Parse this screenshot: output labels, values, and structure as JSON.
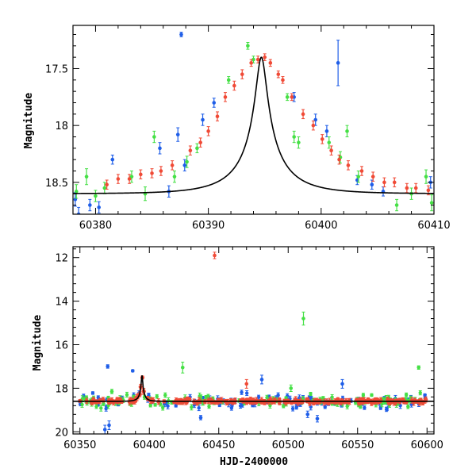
{
  "colors": {
    "blue": "#1f5ee8",
    "green": "#45e045",
    "red": "#f04a36",
    "model": "#000000"
  },
  "chart_data": [
    {
      "type": "scatter",
      "panel": "top",
      "xlabel": "",
      "ylabel": "Magnitude",
      "xlim": [
        60378,
        60410
      ],
      "ylim": [
        18.78,
        17.12
      ],
      "y_inverted": true,
      "xticks": [
        60380,
        60390,
        60400,
        60410
      ],
      "yticks": [
        17.5,
        18,
        18.5
      ],
      "model_curve": {
        "t0": 60394.7,
        "peak_mag": 17.4,
        "base_mag": 18.6,
        "tE": 4.5
      },
      "series": [
        {
          "color": "blue",
          "points": [
            [
              60378.2,
              18.65,
              0.06
            ],
            [
              60378.5,
              18.78,
              0.06
            ],
            [
              60379.5,
              18.7,
              0.05
            ],
            [
              60380.3,
              18.72,
              0.05
            ],
            [
              60381.5,
              18.3,
              0.04
            ],
            [
              60385.7,
              18.2,
              0.05
            ],
            [
              60386.5,
              18.58,
              0.05
            ],
            [
              60387.3,
              18.08,
              0.06
            ],
            [
              60387.6,
              17.2,
              0.02
            ],
            [
              60387.9,
              18.35,
              0.05
            ],
            [
              60389.5,
              17.95,
              0.05
            ],
            [
              60390.5,
              17.8,
              0.04
            ],
            [
              60397.6,
              17.75,
              0.04
            ],
            [
              60399.5,
              17.95,
              0.05
            ],
            [
              60400.5,
              18.05,
              0.05
            ],
            [
              60401.5,
              17.45,
              0.2
            ],
            [
              60403.2,
              18.48,
              0.04
            ],
            [
              60404.5,
              18.52,
              0.04
            ],
            [
              60405.5,
              18.58,
              0.04
            ],
            [
              60409.7,
              18.5,
              0.05
            ]
          ]
        },
        {
          "color": "green",
          "points": [
            [
              60378.3,
              18.58,
              0.06
            ],
            [
              60379.2,
              18.45,
              0.07
            ],
            [
              60380.0,
              18.62,
              0.05
            ],
            [
              60380.8,
              18.55,
              0.05
            ],
            [
              60383.2,
              18.45,
              0.05
            ],
            [
              60384.4,
              18.6,
              0.06
            ],
            [
              60385.2,
              18.1,
              0.05
            ],
            [
              60387.0,
              18.45,
              0.05
            ],
            [
              60388.1,
              18.32,
              0.05
            ],
            [
              60389.0,
              18.2,
              0.04
            ],
            [
              60391.8,
              17.6,
              0.03
            ],
            [
              60393.5,
              17.3,
              0.03
            ],
            [
              60394.0,
              17.42,
              0.03
            ],
            [
              60397.0,
              17.75,
              0.03
            ],
            [
              60397.6,
              18.1,
              0.05
            ],
            [
              60398.0,
              18.15,
              0.05
            ],
            [
              60400.7,
              18.15,
              0.05
            ],
            [
              60401.7,
              18.28,
              0.05
            ],
            [
              60402.3,
              18.05,
              0.05
            ],
            [
              60403.3,
              18.45,
              0.05
            ],
            [
              60406.7,
              18.7,
              0.05
            ],
            [
              60408.0,
              18.6,
              0.05
            ],
            [
              60409.3,
              18.45,
              0.06
            ],
            [
              60409.8,
              18.68,
              0.07
            ]
          ]
        },
        {
          "color": "red",
          "points": [
            [
              60381.0,
              18.52,
              0.04
            ],
            [
              60382.0,
              18.47,
              0.04
            ],
            [
              60383.0,
              18.47,
              0.04
            ],
            [
              60384.0,
              18.43,
              0.04
            ],
            [
              60385.0,
              18.42,
              0.04
            ],
            [
              60385.8,
              18.4,
              0.04
            ],
            [
              60386.8,
              18.35,
              0.04
            ],
            [
              60388.4,
              18.22,
              0.04
            ],
            [
              60389.3,
              18.15,
              0.04
            ],
            [
              60390.0,
              18.05,
              0.04
            ],
            [
              60390.8,
              17.92,
              0.04
            ],
            [
              60391.5,
              17.75,
              0.04
            ],
            [
              60392.3,
              17.65,
              0.04
            ],
            [
              60393.0,
              17.55,
              0.04
            ],
            [
              60393.8,
              17.45,
              0.03
            ],
            [
              60394.4,
              17.42,
              0.03
            ],
            [
              60395.0,
              17.4,
              0.03
            ],
            [
              60395.5,
              17.45,
              0.03
            ],
            [
              60396.2,
              17.55,
              0.03
            ],
            [
              60396.6,
              17.6,
              0.03
            ],
            [
              60397.4,
              17.75,
              0.03
            ],
            [
              60398.4,
              17.9,
              0.04
            ],
            [
              60399.3,
              18.0,
              0.04
            ],
            [
              60400.1,
              18.12,
              0.04
            ],
            [
              60400.9,
              18.22,
              0.04
            ],
            [
              60401.6,
              18.3,
              0.04
            ],
            [
              60402.4,
              18.35,
              0.04
            ],
            [
              60403.6,
              18.4,
              0.04
            ],
            [
              60404.6,
              18.45,
              0.04
            ],
            [
              60405.6,
              18.5,
              0.04
            ],
            [
              60406.5,
              18.5,
              0.04
            ],
            [
              60407.6,
              18.55,
              0.04
            ],
            [
              60408.4,
              18.55,
              0.04
            ],
            [
              60409.5,
              18.57,
              0.04
            ]
          ]
        }
      ]
    },
    {
      "type": "scatter",
      "panel": "bottom",
      "xlabel": "HJD-2400000",
      "ylabel": "Magnitude",
      "xlim": [
        60345,
        60605
      ],
      "ylim": [
        20.1,
        11.5
      ],
      "y_inverted": true,
      "xticks": [
        60350,
        60400,
        60450,
        60500,
        60550,
        60600
      ],
      "yticks": [
        12,
        14,
        16,
        18,
        20
      ],
      "model_curve": {
        "t0": 60394.7,
        "peak_mag": 17.4,
        "base_mag": 18.6,
        "tE": 4.5
      },
      "outliers": [
        {
          "color": "red",
          "x": 60447,
          "y": 11.9,
          "err": 0.15
        },
        {
          "color": "green",
          "x": 60511,
          "y": 14.8,
          "err": 0.3
        },
        {
          "color": "green",
          "x": 60594,
          "y": 17.05,
          "err": 0.08
        },
        {
          "color": "green",
          "x": 60424,
          "y": 17.05,
          "err": 0.25
        },
        {
          "color": "blue",
          "x": 60370,
          "y": 17.0,
          "err": 0.08
        },
        {
          "color": "blue",
          "x": 60388,
          "y": 17.2,
          "err": 0.05
        },
        {
          "color": "blue",
          "x": 60371,
          "y": 19.7,
          "err": 0.2
        },
        {
          "color": "blue",
          "x": 60368,
          "y": 19.9,
          "err": 0.2
        },
        {
          "color": "blue",
          "x": 60521,
          "y": 19.4,
          "err": 0.15
        },
        {
          "color": "blue",
          "x": 60437,
          "y": 19.35,
          "err": 0.1
        },
        {
          "color": "blue",
          "x": 60481,
          "y": 17.6,
          "err": 0.2
        },
        {
          "color": "blue",
          "x": 60539,
          "y": 17.8,
          "err": 0.2
        },
        {
          "color": "red",
          "x": 60470,
          "y": 17.8,
          "err": 0.2
        },
        {
          "color": "green",
          "x": 60373,
          "y": 18.15,
          "err": 0.1
        },
        {
          "color": "green",
          "x": 60502,
          "y": 18.0,
          "err": 0.15
        },
        {
          "color": "blue",
          "x": 60514,
          "y": 19.2,
          "err": 0.15
        }
      ],
      "baseline_scatter": {
        "x_range": [
          60350,
          60600
        ],
        "mean_mag": 18.6,
        "spread": {
          "blue": 0.28,
          "green": 0.3,
          "red": 0.08
        }
      }
    }
  ]
}
